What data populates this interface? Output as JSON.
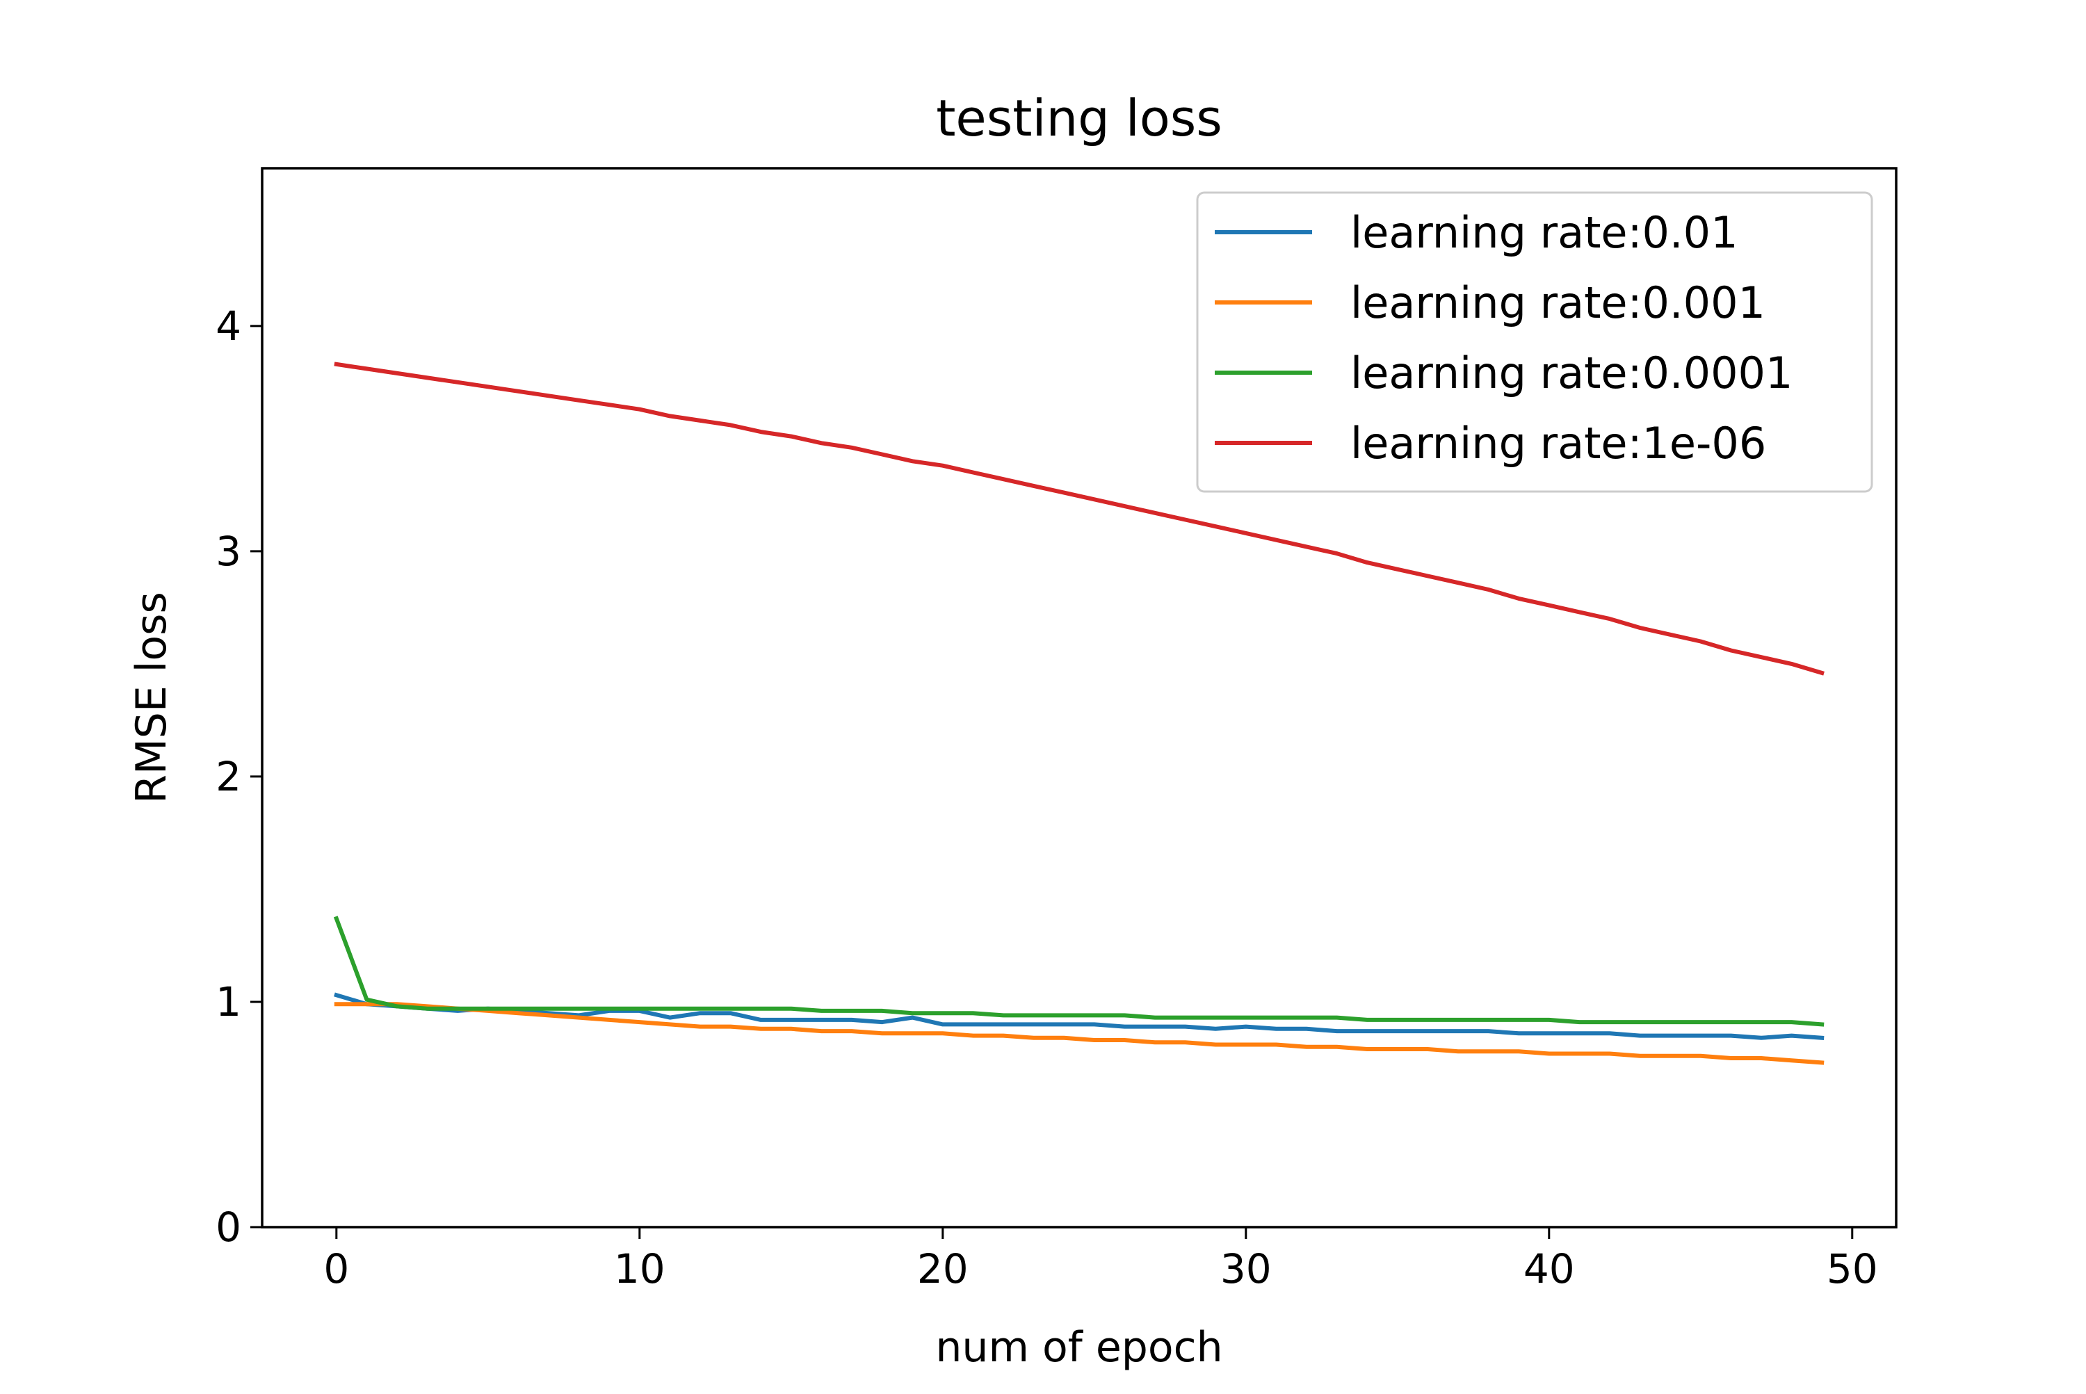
{
  "chart_data": {
    "type": "line",
    "title": "testing loss",
    "xlabel": "num of epoch",
    "ylabel": "RMSE loss",
    "xlim": [
      -2.45,
      51.45
    ],
    "ylim": [
      0,
      4.7
    ],
    "xticks": [
      0,
      10,
      20,
      30,
      40,
      50
    ],
    "xtick_labels": [
      "0",
      "10",
      "20",
      "30",
      "40",
      "50"
    ],
    "yticks": [
      0,
      1,
      2,
      3,
      4
    ],
    "ytick_labels": [
      "0",
      "1",
      "2",
      "3",
      "4"
    ],
    "grid": false,
    "legend_position": "upper right",
    "series": [
      {
        "name": "learning rate:0.01",
        "color": "#1f77b4",
        "values": [
          1.03,
          0.99,
          0.98,
          0.97,
          0.96,
          0.97,
          0.96,
          0.95,
          0.94,
          0.96,
          0.96,
          0.93,
          0.95,
          0.95,
          0.92,
          0.92,
          0.92,
          0.92,
          0.91,
          0.93,
          0.9,
          0.9,
          0.9,
          0.9,
          0.9,
          0.9,
          0.89,
          0.89,
          0.89,
          0.88,
          0.89,
          0.88,
          0.88,
          0.87,
          0.87,
          0.87,
          0.87,
          0.87,
          0.87,
          0.86,
          0.86,
          0.86,
          0.86,
          0.85,
          0.85,
          0.85,
          0.85,
          0.84,
          0.85,
          0.84
        ]
      },
      {
        "name": "learning rate:0.001",
        "color": "#ff7f0e",
        "values": [
          0.99,
          0.99,
          0.99,
          0.98,
          0.97,
          0.96,
          0.95,
          0.94,
          0.93,
          0.92,
          0.91,
          0.9,
          0.89,
          0.89,
          0.88,
          0.88,
          0.87,
          0.87,
          0.86,
          0.86,
          0.86,
          0.85,
          0.85,
          0.84,
          0.84,
          0.83,
          0.83,
          0.82,
          0.82,
          0.81,
          0.81,
          0.81,
          0.8,
          0.8,
          0.79,
          0.79,
          0.79,
          0.78,
          0.78,
          0.78,
          0.77,
          0.77,
          0.77,
          0.76,
          0.76,
          0.76,
          0.75,
          0.75,
          0.74,
          0.73
        ]
      },
      {
        "name": "learning rate:0.0001",
        "color": "#2ca02c",
        "values": [
          1.37,
          1.01,
          0.98,
          0.97,
          0.97,
          0.97,
          0.97,
          0.97,
          0.97,
          0.97,
          0.97,
          0.97,
          0.97,
          0.97,
          0.97,
          0.97,
          0.96,
          0.96,
          0.96,
          0.95,
          0.95,
          0.95,
          0.94,
          0.94,
          0.94,
          0.94,
          0.94,
          0.93,
          0.93,
          0.93,
          0.93,
          0.93,
          0.93,
          0.93,
          0.92,
          0.92,
          0.92,
          0.92,
          0.92,
          0.92,
          0.92,
          0.91,
          0.91,
          0.91,
          0.91,
          0.91,
          0.91,
          0.91,
          0.91,
          0.9
        ]
      },
      {
        "name": "learning rate:1e-06",
        "color": "#d62728",
        "values": [
          3.83,
          3.81,
          3.79,
          3.77,
          3.75,
          3.73,
          3.71,
          3.69,
          3.67,
          3.65,
          3.63,
          3.6,
          3.58,
          3.56,
          3.53,
          3.51,
          3.48,
          3.46,
          3.43,
          3.4,
          3.38,
          3.35,
          3.32,
          3.29,
          3.26,
          3.23,
          3.2,
          3.17,
          3.14,
          3.11,
          3.08,
          3.05,
          3.02,
          2.99,
          2.95,
          2.92,
          2.89,
          2.86,
          2.83,
          2.79,
          2.76,
          2.73,
          2.7,
          2.66,
          2.63,
          2.6,
          2.56,
          2.53,
          2.5,
          2.46
        ]
      }
    ]
  }
}
